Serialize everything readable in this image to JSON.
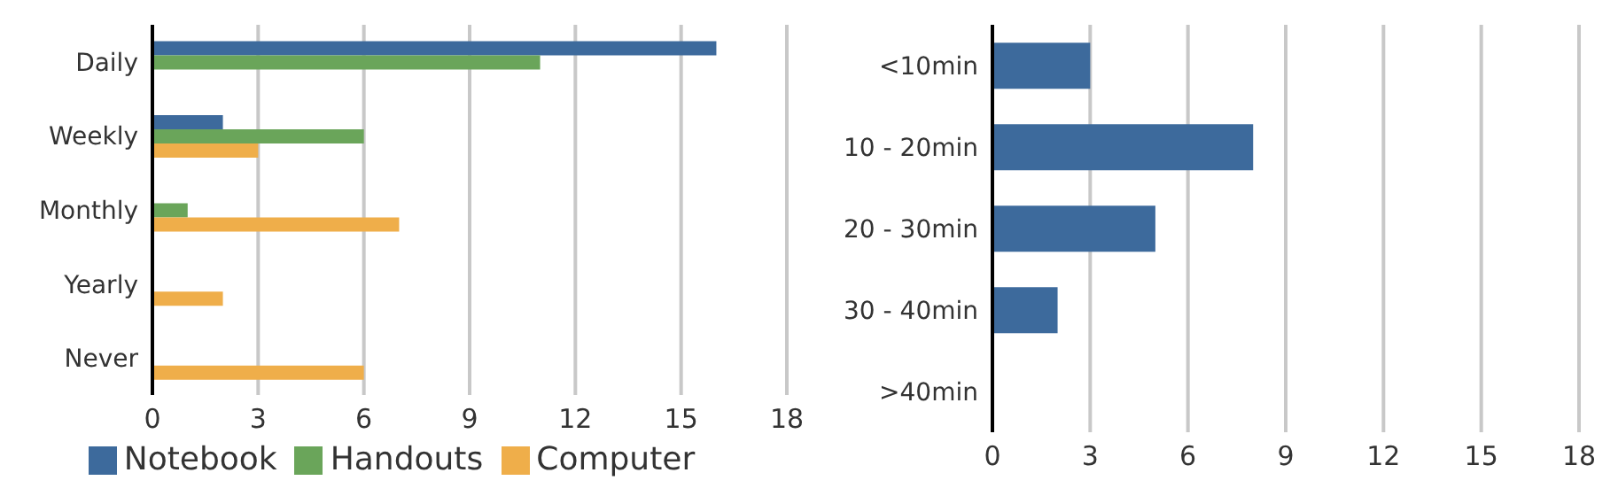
{
  "chart_data": [
    {
      "type": "bar",
      "orientation": "horizontal",
      "categories": [
        "Daily",
        "Weekly",
        "Monthly",
        "Yearly",
        "Never"
      ],
      "series": [
        {
          "name": "Notebook",
          "color": "#3d6a9c",
          "values": [
            16,
            2,
            0,
            0,
            0
          ]
        },
        {
          "name": "Handouts",
          "color": "#6aa55a",
          "values": [
            11,
            6,
            1,
            0,
            0
          ]
        },
        {
          "name": "Computer",
          "color": "#efae4a",
          "values": [
            0,
            3,
            7,
            2,
            6
          ]
        }
      ],
      "xlim": [
        0,
        18
      ],
      "xticks": [
        0,
        3,
        6,
        9,
        12,
        15,
        18
      ],
      "grid": "x",
      "legend": "bottom"
    },
    {
      "type": "bar",
      "orientation": "horizontal",
      "categories": [
        "<10min",
        "10 - 20min",
        "20 - 30min",
        "30 - 40min",
        ">40min"
      ],
      "values": [
        3,
        8,
        5,
        2,
        0
      ],
      "color": "#3d6a9c",
      "xlim": [
        0,
        18
      ],
      "xticks": [
        0,
        3,
        6,
        9,
        12,
        15,
        18
      ],
      "grid": "x"
    }
  ]
}
